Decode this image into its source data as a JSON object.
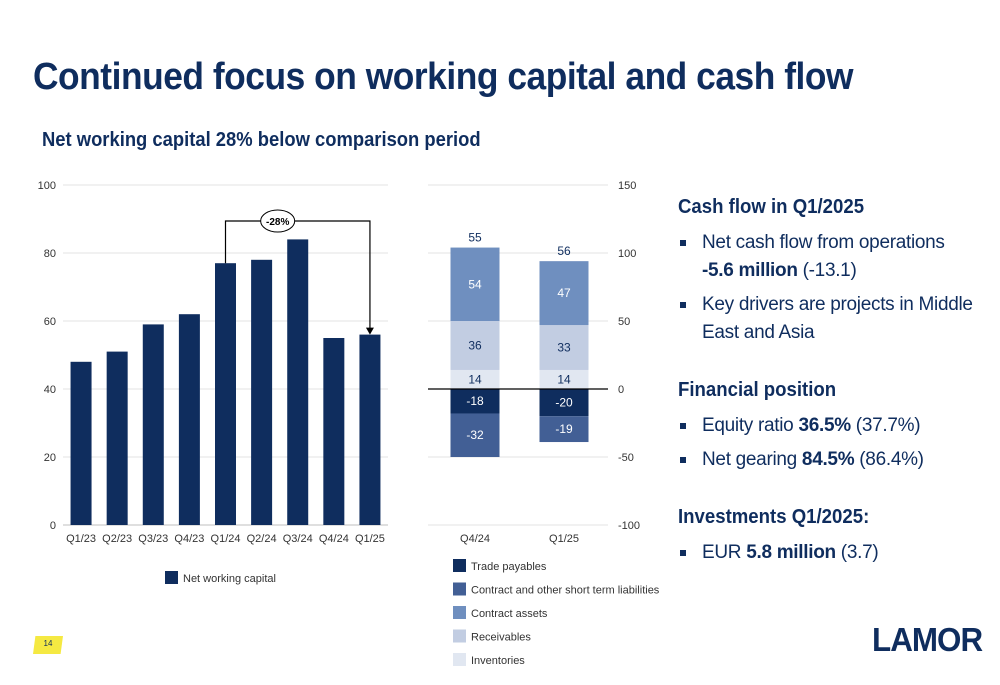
{
  "page": {
    "title": "Continued focus on working capital and cash flow",
    "subtitle": "Net working capital 28% below comparison period",
    "page_number": "14",
    "logo_text": "LAMOR"
  },
  "chart_data": [
    {
      "type": "bar",
      "categories": [
        "Q1/23",
        "Q2/23",
        "Q3/23",
        "Q4/23",
        "Q1/24",
        "Q2/24",
        "Q3/24",
        "Q4/24",
        "Q1/25"
      ],
      "series": [
        {
          "name": "Net working capital",
          "color": "#0f2d5e",
          "values": [
            48,
            51,
            59,
            62,
            77,
            78,
            84,
            55,
            56
          ]
        }
      ],
      "ylim": [
        0,
        100
      ],
      "yticks": [
        0,
        20,
        40,
        60,
        80,
        100
      ],
      "annotation": {
        "label": "-28%",
        "from_category": "Q1/24",
        "to_category": "Q1/25"
      },
      "grid": true,
      "legend": "bottom"
    },
    {
      "type": "bar",
      "stacked": true,
      "categories": [
        "Q4/24",
        "Q1/25"
      ],
      "totals": [
        55,
        56
      ],
      "series": [
        {
          "name": "Trade payables",
          "color": "#0f2d5e",
          "values": [
            -18,
            -20
          ]
        },
        {
          "name": "Contract and other short term liabilities",
          "color": "#425f95",
          "values": [
            -32,
            -19
          ]
        },
        {
          "name": "Contract assets",
          "color": "#6f8fbf",
          "values": [
            54,
            47
          ]
        },
        {
          "name": "Receivables",
          "color": "#c2cde2",
          "values": [
            36,
            33
          ]
        },
        {
          "name": "Inventories",
          "color": "#e1e7f1",
          "values": [
            14,
            14
          ]
        }
      ],
      "ylim": [
        -100,
        150
      ],
      "yticks": [
        -100,
        -50,
        0,
        50,
        100,
        150
      ],
      "grid": true,
      "legend": "bottom"
    }
  ],
  "right": {
    "cash_flow": {
      "heading": "Cash flow in Q1/2025",
      "b1_text": "Net cash flow from operations",
      "b1_bold": "-5.6 million",
      "b1_tail": " (-13.1)",
      "b2_text": "Key drivers are projects in Middle East and Asia"
    },
    "financial": {
      "heading": "Financial position",
      "b1_pre": "Equity ratio ",
      "b1_bold": "36.5%",
      "b1_tail": " (37.7%)",
      "b2_pre": "Net gearing ",
      "b2_bold": "84.5%",
      "b2_tail": " (86.4%)"
    },
    "investments": {
      "heading": "Investments Q1/2025:",
      "b1_pre": "EUR ",
      "b1_bold": "5.8 million",
      "b1_tail": " (3.7)"
    }
  }
}
